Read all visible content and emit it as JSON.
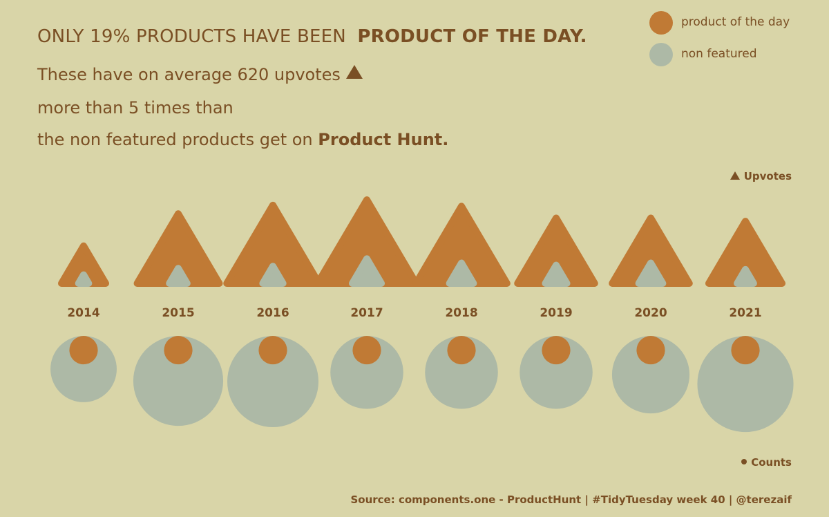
{
  "header": {
    "title_prefix": "ONLY 19% PRODUCTS HAVE BEEN",
    "title_bold": "PRODUCT OF THE DAY.",
    "line1": "These have on average 620 upvotes",
    "line2": "more than 5 times than",
    "line3_prefix": "the non featured products get on",
    "line3_bold": "Product Hunt."
  },
  "legend": {
    "featured_label": "product of the day",
    "nonfeatured_label": "non featured"
  },
  "notes": {
    "upvotes": "Upvotes",
    "counts": "Counts"
  },
  "source": "Source: components.one - ProductHunt | #TidyTuesday week 40 | @terezaif",
  "colors": {
    "featured": "#c07a35",
    "nonfeatured": "#adb9a6",
    "text": "#7a4f24",
    "background": "#d9d5a8"
  },
  "chart_data": {
    "type": "triangle-and-bubble",
    "categories": [
      "2014",
      "2015",
      "2016",
      "2017",
      "2018",
      "2019",
      "2020",
      "2021"
    ],
    "upvotes": {
      "product of the day": [
        350,
        650,
        730,
        780,
        720,
        610,
        610,
        580
      ],
      "non featured": [
        80,
        140,
        160,
        230,
        190,
        170,
        190,
        130
      ]
    },
    "counts": {
      "product of the day": [
        350,
        350,
        350,
        350,
        350,
        350,
        350,
        350
      ],
      "non featured": [
        1900,
        3500,
        3600,
        2300,
        2300,
        2300,
        2600,
        4000
      ]
    }
  }
}
